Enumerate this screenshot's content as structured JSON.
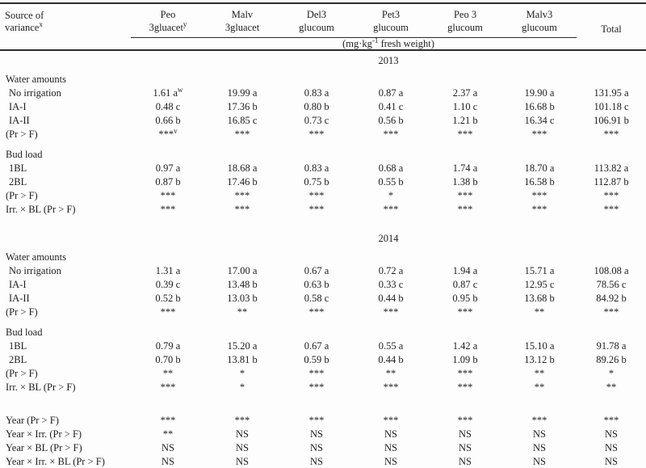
{
  "table": {
    "header": {
      "row_label": {
        "line1": "Source of",
        "line2": "variance",
        "sup": "x"
      },
      "columns": [
        {
          "line1": "Peo",
          "line2": "3gluacet",
          "sup": "y"
        },
        {
          "line1": "Malv",
          "line2": "3gluacet",
          "sup": ""
        },
        {
          "line1": "Del3",
          "line2": "glucoum",
          "sup": ""
        },
        {
          "line1": "Pet3",
          "line2": "glucoum",
          "sup": ""
        },
        {
          "line1": "Peo 3",
          "line2": "glucoum",
          "sup": ""
        },
        {
          "line1": "Malv3",
          "line2": "glucoum",
          "sup": ""
        }
      ],
      "total": "Total",
      "units": {
        "prefix": "(mg·kg",
        "sup": "-1",
        "suffix": " fresh weight)"
      }
    },
    "rows": [
      {
        "type": "year",
        "label": "2013"
      },
      {
        "type": "section",
        "label": "Water amounts"
      },
      {
        "type": "data",
        "indent": true,
        "label": "No irrigation",
        "cells": [
          "1.61 a^w",
          "19.99 a",
          "0.83 a",
          "0.87 a",
          "2.37 a",
          "19.90 a",
          "131.95 a"
        ]
      },
      {
        "type": "data",
        "indent": true,
        "label": "IA-I",
        "cells": [
          "0.48 c",
          "17.36 b",
          "0.80 b",
          "0.41 c",
          "1.10 c",
          "16.68 b",
          "101.18 c"
        ]
      },
      {
        "type": "data",
        "indent": true,
        "label": "IA-II",
        "cells": [
          "0.66 b",
          "16.85 c",
          "0.73 c",
          "0.56 b",
          "1.21 b",
          "16.34 c",
          "106.91 b"
        ]
      },
      {
        "type": "data",
        "label": "(Pr > F)",
        "cells": [
          "***^v",
          "***",
          "***",
          "***",
          "***",
          "***",
          "***"
        ]
      },
      {
        "type": "section",
        "label": "Bud load"
      },
      {
        "type": "data",
        "indent": true,
        "label": "1BL",
        "cells": [
          "0.97 a",
          "18.68 a",
          "0.83 a",
          "0.68 a",
          "1.74 a",
          "18.70 a",
          "113.82 a"
        ]
      },
      {
        "type": "data",
        "indent": true,
        "label": "2BL",
        "cells": [
          "0.87 b",
          "17.46 b",
          "0.75 b",
          "0.55 b",
          "1.38 b",
          "16.58 b",
          "112.87 b"
        ]
      },
      {
        "type": "data",
        "label": "(Pr > F)",
        "cells": [
          "***",
          "***",
          "***",
          "*",
          "***",
          "***",
          "***"
        ]
      },
      {
        "type": "data",
        "label": "Irr. × BL (Pr > F)",
        "cells": [
          "***",
          "***",
          "***",
          "***",
          "***",
          "***",
          "***"
        ]
      },
      {
        "type": "year",
        "label": "2014"
      },
      {
        "type": "section",
        "label": "Water amounts"
      },
      {
        "type": "data",
        "indent": true,
        "label": "No irrigation",
        "cells": [
          "1.31 a",
          "17.00 a",
          "0.67 a",
          "0.72 a",
          "1.94 a",
          "15.71 a",
          "108.08 a"
        ]
      },
      {
        "type": "data",
        "indent": true,
        "label": "IA-I",
        "cells": [
          "0.39 c",
          "13.48 b",
          "0.63 b",
          "0.33 c",
          "0.87 c",
          "12.95 c",
          "78.56 c"
        ]
      },
      {
        "type": "data",
        "indent": true,
        "label": "IA-II",
        "cells": [
          "0.52 b",
          "13.03 b",
          "0.58 c",
          "0.44 b",
          "0.95 b",
          "13.68 b",
          "84.92 b"
        ]
      },
      {
        "type": "data",
        "label": "(Pr > F)",
        "cells": [
          "***",
          "**",
          "***",
          "***",
          "***",
          "**",
          "***"
        ]
      },
      {
        "type": "section",
        "label": "Bud load"
      },
      {
        "type": "data",
        "indent": true,
        "label": "1BL",
        "cells": [
          "0.79 a",
          "15.20 a",
          "0.67 a",
          "0.55 a",
          "1.42 a",
          "15.10 a",
          "91.78 a"
        ]
      },
      {
        "type": "data",
        "indent": true,
        "label": "2BL",
        "cells": [
          "0.70 b",
          "13.81 b",
          "0.59 b",
          "0.44 b",
          "1.09 b",
          "13.12 b",
          "89.26 b"
        ]
      },
      {
        "type": "data",
        "label": "(Pr > F)",
        "cells": [
          "**",
          "*",
          "***",
          "**",
          "***",
          "**",
          "*"
        ]
      },
      {
        "type": "data",
        "label": "Irr. × BL (Pr > F)",
        "cells": [
          "***",
          "*",
          "***",
          "***",
          "***",
          "**",
          "**"
        ]
      },
      {
        "type": "spacer",
        "label": ""
      },
      {
        "type": "data",
        "label": "Year (Pr > F)",
        "cells": [
          "***",
          "***",
          "***",
          "***",
          "***",
          "***",
          "***"
        ]
      },
      {
        "type": "data",
        "label": "Year × Irr. (Pr > F)",
        "cells": [
          "**",
          "NS",
          "NS",
          "NS",
          "NS",
          "NS",
          "NS"
        ]
      },
      {
        "type": "data",
        "label": "Year × BL (Pr > F)",
        "cells": [
          "NS",
          "NS",
          "NS",
          "NS",
          "NS",
          "NS",
          "NS"
        ]
      },
      {
        "type": "data",
        "label": "Year × Irr. × BL (Pr > F)",
        "cells": [
          "NS",
          "NS",
          "NS",
          "NS",
          "NS",
          "NS",
          "NS"
        ]
      }
    ]
  }
}
